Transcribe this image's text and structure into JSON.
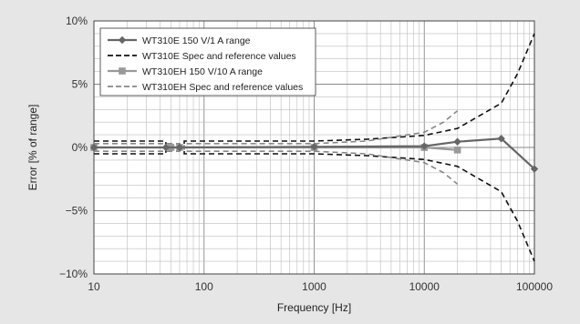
{
  "chart_data": {
    "type": "line",
    "xlabel": "Frequency [Hz]",
    "ylabel": "Error [% of  range]",
    "x_scale": "log",
    "xlim": [
      10,
      100000
    ],
    "ylim": [
      -10,
      10
    ],
    "x_ticks": [
      {
        "value": 10,
        "label": "10"
      },
      {
        "value": 100,
        "label": "100"
      },
      {
        "value": 1000,
        "label": "1000"
      },
      {
        "value": 10000,
        "label": "10000"
      },
      {
        "value": 100000,
        "label": "100000"
      }
    ],
    "y_ticks": [
      {
        "value": 10,
        "label": "10%"
      },
      {
        "value": 5,
        "label": "5%"
      },
      {
        "value": 0,
        "label": "0%"
      },
      {
        "value": -5,
        "label": "−5%"
      },
      {
        "value": -10,
        "label": "−10%"
      }
    ],
    "grid": true,
    "legend_position": "top-left",
    "series": [
      {
        "name": "WT310E 150 V/1 A range",
        "style": "solid",
        "marker": "diamond",
        "color": "#666666",
        "x": [
          10,
          45,
          60,
          1000,
          10000,
          20000,
          50000,
          100000
        ],
        "y": [
          0.0,
          0.0,
          0.0,
          0.05,
          0.1,
          0.45,
          0.7,
          -1.7
        ]
      },
      {
        "name": "WT310E Spec and reference values",
        "style": "dashed",
        "color": "#111111",
        "bands": [
          {
            "x": [
              10,
              45,
              45,
              66,
              66,
              1000,
              3000,
              10000,
              20000,
              50000,
              70000,
              100000
            ],
            "y": [
              0.5,
              0.5,
              0.0,
              0.0,
              0.5,
              0.5,
              0.65,
              0.95,
              1.5,
              3.5,
              5.8,
              9.0
            ]
          },
          {
            "x": [
              10,
              45,
              45,
              66,
              66,
              1000,
              3000,
              10000,
              20000,
              50000,
              70000,
              100000
            ],
            "y": [
              -0.5,
              -0.5,
              0.0,
              0.0,
              -0.5,
              -0.5,
              -0.65,
              -0.95,
              -1.5,
              -3.5,
              -5.8,
              -9.0
            ]
          }
        ]
      },
      {
        "name": "WT310EH 150 V/10 A range",
        "style": "solid",
        "marker": "square",
        "color": "#999999",
        "x": [
          10,
          50,
          60,
          1000,
          10000,
          20000
        ],
        "y": [
          0.0,
          0.0,
          0.0,
          0.0,
          0.0,
          -0.2
        ]
      },
      {
        "name": "WT310EH Spec and reference values",
        "style": "dashed",
        "color": "#888888",
        "bands": [
          {
            "x": [
              10,
              60,
              60,
              66,
              66,
              1000,
              3000,
              10000,
              15000,
              20000
            ],
            "y": [
              0.3,
              0.3,
              0.0,
              0.0,
              0.3,
              0.3,
              0.5,
              1.2,
              2.0,
              2.9
            ]
          },
          {
            "x": [
              10,
              60,
              60,
              66,
              66,
              1000,
              3000,
              10000,
              15000,
              20000
            ],
            "y": [
              -0.3,
              -0.3,
              0.0,
              0.0,
              -0.3,
              -0.3,
              -0.5,
              -1.2,
              -2.0,
              -2.9
            ]
          }
        ]
      }
    ]
  }
}
